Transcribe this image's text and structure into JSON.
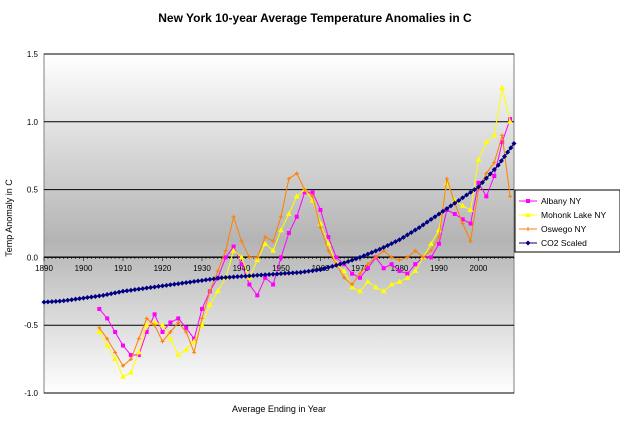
{
  "chart_data": {
    "type": "line",
    "title": "New York 10-year Average Temperature Anomalies in C",
    "xlabel": "Average Ending in Year",
    "ylabel": "Temp Anomaly in C",
    "xlim": [
      1890,
      2009
    ],
    "ylim": [
      -1.0,
      1.5
    ],
    "x_ticks": [
      1890,
      1900,
      1910,
      1920,
      1930,
      1940,
      1950,
      1960,
      1970,
      1980,
      1990,
      2000
    ],
    "y_ticks": [
      "-1.0",
      "-0.5",
      "0.0",
      "0.5",
      "1.0",
      "1.5"
    ],
    "grid": true,
    "legend_position": "right",
    "series": [
      {
        "name": "Albany NY",
        "color": "#ff00ff",
        "marker": "square",
        "x": [
          1904,
          1906,
          1908,
          1910,
          1912,
          1914,
          1916,
          1918,
          1920,
          1922,
          1924,
          1926,
          1928,
          1930,
          1932,
          1934,
          1936,
          1938,
          1940,
          1942,
          1944,
          1946,
          1948,
          1950,
          1952,
          1954,
          1956,
          1958,
          1960,
          1962,
          1964,
          1966,
          1968,
          1970,
          1972,
          1974,
          1976,
          1978,
          1980,
          1982,
          1984,
          1986,
          1988,
          1990,
          1992,
          1994,
          1996,
          1998,
          2000,
          2002,
          2004,
          2006,
          2008
        ],
        "y": [
          -0.38,
          -0.45,
          -0.55,
          -0.65,
          -0.72,
          -0.72,
          -0.55,
          -0.42,
          -0.55,
          -0.48,
          -0.45,
          -0.52,
          -0.6,
          -0.38,
          -0.25,
          -0.15,
          0.0,
          0.08,
          -0.05,
          -0.2,
          -0.28,
          -0.15,
          -0.2,
          0.0,
          0.18,
          0.3,
          0.48,
          0.48,
          0.35,
          0.15,
          0.0,
          -0.05,
          -0.12,
          -0.15,
          -0.08,
          0.0,
          -0.08,
          -0.05,
          -0.1,
          -0.12,
          -0.05,
          0.0,
          0.0,
          0.1,
          0.35,
          0.32,
          0.28,
          0.25,
          0.55,
          0.45,
          0.6,
          0.85,
          1.02
        ]
      },
      {
        "name": "Mohonk Lake NY",
        "color": "#ffff00",
        "marker": "triangle",
        "x": [
          1904,
          1906,
          1908,
          1910,
          1912,
          1914,
          1916,
          1918,
          1920,
          1922,
          1924,
          1926,
          1928,
          1930,
          1932,
          1934,
          1936,
          1938,
          1940,
          1942,
          1944,
          1946,
          1948,
          1950,
          1952,
          1954,
          1956,
          1958,
          1960,
          1962,
          1964,
          1966,
          1968,
          1970,
          1972,
          1974,
          1976,
          1978,
          1980,
          1982,
          1984,
          1986,
          1988,
          1990,
          1992,
          1994,
          1996,
          1998,
          2000,
          2002,
          2004,
          2006,
          2008
        ],
        "y": [
          -0.55,
          -0.65,
          -0.75,
          -0.88,
          -0.85,
          -0.7,
          -0.5,
          -0.48,
          -0.5,
          -0.6,
          -0.72,
          -0.68,
          -0.62,
          -0.5,
          -0.35,
          -0.25,
          -0.15,
          0.05,
          0.0,
          -0.15,
          -0.02,
          0.1,
          0.05,
          0.2,
          0.32,
          0.45,
          0.5,
          0.42,
          0.25,
          0.1,
          -0.05,
          -0.1,
          -0.22,
          -0.25,
          -0.18,
          -0.22,
          -0.25,
          -0.2,
          -0.18,
          -0.15,
          -0.1,
          0.0,
          0.1,
          0.2,
          0.55,
          0.42,
          0.38,
          0.35,
          0.72,
          0.85,
          0.9,
          1.25,
          1.0
        ]
      },
      {
        "name": "Oswego NY",
        "color": "#ff7f00",
        "marker": "plus",
        "x": [
          1904,
          1906,
          1908,
          1910,
          1912,
          1914,
          1916,
          1918,
          1920,
          1922,
          1924,
          1926,
          1928,
          1930,
          1932,
          1934,
          1936,
          1938,
          1940,
          1942,
          1944,
          1946,
          1948,
          1950,
          1952,
          1954,
          1956,
          1958,
          1960,
          1962,
          1964,
          1966,
          1968,
          1970,
          1972,
          1974,
          1976,
          1978,
          1980,
          1982,
          1984,
          1986,
          1988,
          1990,
          1992,
          1994,
          1996,
          1998,
          2000,
          2002,
          2004,
          2006,
          2008
        ],
        "y": [
          -0.52,
          -0.6,
          -0.7,
          -0.8,
          -0.75,
          -0.6,
          -0.45,
          -0.5,
          -0.62,
          -0.55,
          -0.48,
          -0.55,
          -0.7,
          -0.45,
          -0.25,
          -0.1,
          0.05,
          0.3,
          0.12,
          0.0,
          0.0,
          0.15,
          0.12,
          0.3,
          0.58,
          0.62,
          0.5,
          0.45,
          0.22,
          0.05,
          -0.05,
          -0.15,
          -0.2,
          -0.12,
          -0.05,
          0.0,
          0.05,
          0.0,
          -0.02,
          0.0,
          0.05,
          0.0,
          0.05,
          0.15,
          0.58,
          0.4,
          0.25,
          0.12,
          0.5,
          0.62,
          0.7,
          0.9,
          0.45
        ]
      },
      {
        "name": "CO2 Scaled",
        "color": "#000080",
        "marker": "diamond",
        "x": [
          1890,
          1895,
          1900,
          1905,
          1910,
          1915,
          1920,
          1925,
          1930,
          1935,
          1940,
          1945,
          1950,
          1955,
          1960,
          1965,
          1970,
          1975,
          1980,
          1985,
          1990,
          1995,
          2000,
          2005,
          2009
        ],
        "y": [
          -0.33,
          -0.32,
          -0.3,
          -0.28,
          -0.25,
          -0.23,
          -0.21,
          -0.19,
          -0.17,
          -0.15,
          -0.14,
          -0.13,
          -0.12,
          -0.11,
          -0.09,
          -0.05,
          0.0,
          0.06,
          0.13,
          0.22,
          0.32,
          0.42,
          0.52,
          0.68,
          0.84
        ]
      }
    ]
  }
}
